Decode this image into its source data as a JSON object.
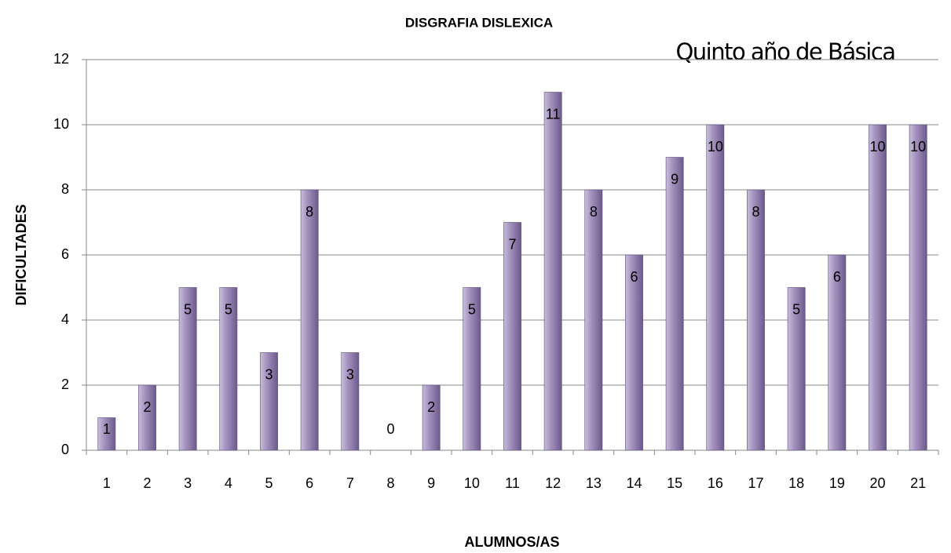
{
  "chart_data": {
    "type": "bar",
    "title": "DISGRAFIA DISLEXICA",
    "annotation": "Quinto año de Básica",
    "x_label": "ALUMNOS/AS",
    "y_label": "DIFICULTADES",
    "categories": [
      "1",
      "2",
      "3",
      "4",
      "5",
      "6",
      "7",
      "8",
      "9",
      "10",
      "11",
      "12",
      "13",
      "14",
      "15",
      "16",
      "17",
      "18",
      "19",
      "20",
      "21"
    ],
    "values": [
      1,
      2,
      5,
      5,
      3,
      8,
      3,
      0,
      2,
      5,
      7,
      11,
      8,
      6,
      9,
      10,
      8,
      5,
      6,
      10,
      10
    ],
    "color": "#8d7aab",
    "ylim": [
      0,
      12
    ],
    "yticks": [
      0,
      2,
      4,
      6,
      8,
      10,
      12
    ],
    "grid": true
  }
}
